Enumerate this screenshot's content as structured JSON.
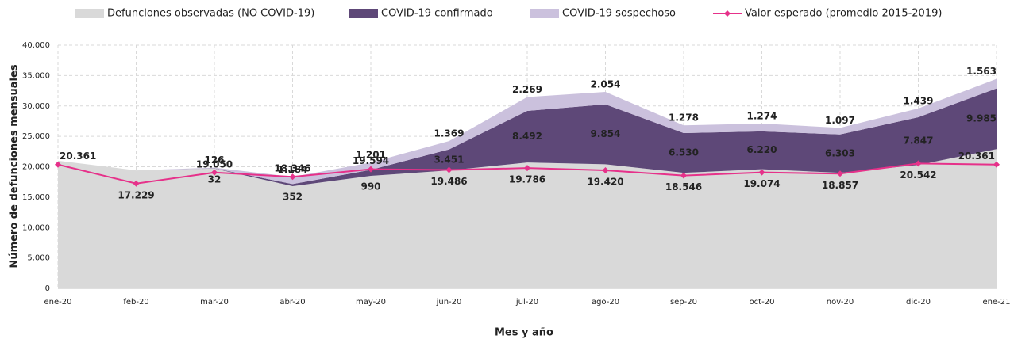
{
  "chart_data": {
    "type": "stacked-area",
    "x_label": "Mes y año",
    "y_label": "Número de defunciones mensuales",
    "categories": [
      "ene-20",
      "feb-20",
      "mar-20",
      "abr-20",
      "may-20",
      "jun-20",
      "jul-20",
      "ago-20",
      "sep-20",
      "oct-20",
      "nov-20",
      "dic-20",
      "ene-21"
    ],
    "ylim": [
      0,
      40000
    ],
    "yticks": [
      0,
      {
        "value": 5000,
        "label": "5.000"
      },
      {
        "value": 10000,
        "label": "10.000"
      },
      {
        "value": 15000,
        "label": "15.000"
      },
      {
        "value": 20000,
        "label": "20.000"
      },
      {
        "value": 25000,
        "label": "25.000"
      },
      {
        "value": 30000,
        "label": "30.000"
      },
      {
        "value": 35000,
        "label": "35.000"
      },
      {
        "value": 40000,
        "label": "40.000"
      }
    ],
    "grid": true,
    "series": [
      {
        "name": "Defunciones observadas (NO COVID-19)",
        "color": "#d9d9d9",
        "label_color": "#d9d9d9",
        "values": [
          21000,
          19400,
          19700,
          16800,
          18500,
          19400,
          20700,
          20400,
          19000,
          19600,
          19000,
          20300,
          22900
        ]
      },
      {
        "name": "COVID-19 confirmado",
        "color": "#5e4878",
        "label_color": "#d8d0e4",
        "values": [
          0,
          0,
          32,
          352,
          990,
          3451,
          8492,
          9854,
          6530,
          6220,
          6303,
          7847,
          9985
        ],
        "value_labels": [
          null,
          null,
          "32",
          "352",
          "990",
          "3.451",
          "8.492",
          "9.854",
          "6.530",
          "6.220",
          "6.303",
          "7.847",
          "9.985"
        ]
      },
      {
        "name": "COVID-19 sospechoso",
        "color": "#cbc1dd",
        "label_color": "#7a3aa6",
        "values": [
          0,
          0,
          126,
          1184,
          1201,
          1369,
          2269,
          2054,
          1278,
          1274,
          1097,
          1439,
          1563
        ],
        "value_labels": [
          null,
          null,
          "126",
          "1.184",
          "1.201",
          "1.369",
          "2.269",
          "2.054",
          "1.278",
          "1.274",
          "1.097",
          "1.439",
          "1.563"
        ]
      },
      {
        "name": "Valor esperado (promedio 2015-2019)",
        "type": "line",
        "color": "#e6318a",
        "label_color": "#d4186f",
        "values": [
          20361,
          17229,
          19050,
          18346,
          19594,
          19486,
          19786,
          19420,
          18546,
          19074,
          18857,
          20542,
          20361
        ],
        "value_labels": [
          "20.361",
          "17.229",
          "19.050",
          "18.346",
          "19.594",
          "19.486",
          "19.786",
          "19.420",
          "18.546",
          "19.074",
          "18.857",
          "20.542",
          "20.361"
        ]
      }
    ]
  }
}
